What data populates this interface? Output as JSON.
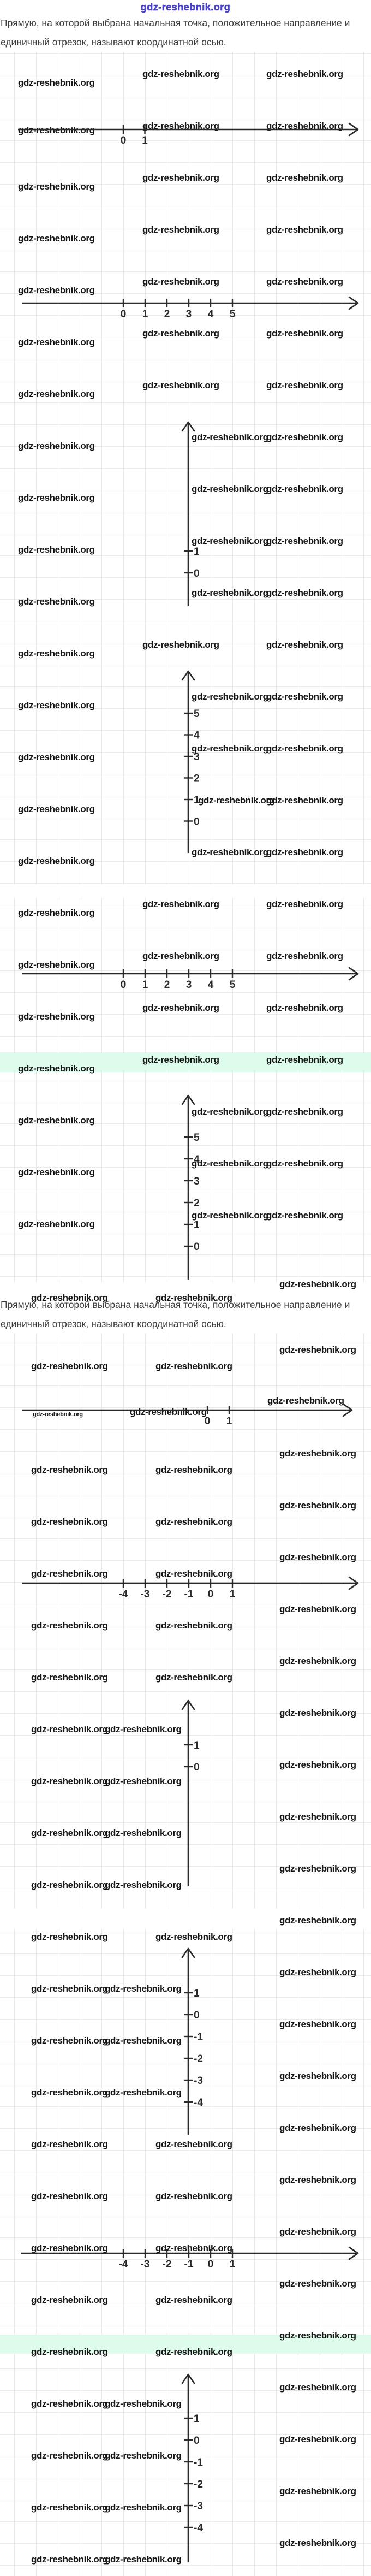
{
  "header": {
    "site_link": "gdz-reshebnik.org"
  },
  "watermark_text": "gdz-reshebnik.org",
  "paragraph": {
    "line1": "Прямую, на которой выбрана начальная точка, положительное направление и",
    "line2": "единичный отрезок, называют координатной осью."
  },
  "axes": [
    {
      "id": "axis-1",
      "orientation": "horizontal",
      "tick_labels": [
        "0",
        "1"
      ]
    },
    {
      "id": "axis-2",
      "orientation": "horizontal",
      "tick_labels": [
        "0",
        "1",
        "2",
        "3",
        "4",
        "5"
      ]
    },
    {
      "id": "axis-3",
      "orientation": "vertical",
      "tick_labels": [
        "1",
        "0"
      ]
    },
    {
      "id": "axis-4",
      "orientation": "vertical",
      "tick_labels": [
        "5",
        "4",
        "3",
        "2",
        "1",
        "0"
      ]
    },
    {
      "id": "axis-5",
      "orientation": "horizontal",
      "tick_labels": [
        "0",
        "1",
        "2",
        "3",
        "4",
        "5"
      ]
    },
    {
      "id": "axis-6",
      "orientation": "vertical",
      "tick_labels": [
        "5",
        "4",
        "3",
        "2",
        "1",
        "0"
      ]
    },
    {
      "id": "axis-7",
      "orientation": "horizontal",
      "tick_labels": [
        "0",
        "1"
      ]
    },
    {
      "id": "axis-8",
      "orientation": "horizontal",
      "tick_labels": [
        "-4",
        "-3",
        "-2",
        "-1",
        "0",
        "1"
      ]
    },
    {
      "id": "axis-9",
      "orientation": "vertical",
      "tick_labels": [
        "1",
        "0"
      ]
    },
    {
      "id": "axis-10",
      "orientation": "vertical",
      "tick_labels": [
        "1",
        "0",
        "-1",
        "-2",
        "-3",
        "-4"
      ]
    },
    {
      "id": "axis-11",
      "orientation": "horizontal",
      "tick_labels": [
        "-4",
        "-3",
        "-2",
        "-1",
        "0",
        "1"
      ]
    },
    {
      "id": "axis-12",
      "orientation": "vertical",
      "tick_labels": [
        "1",
        "0",
        "-1",
        "-2",
        "-3",
        "-4"
      ]
    }
  ],
  "colors": {
    "page_bg": "#ffffff",
    "grid_line": "#e9e9e9",
    "axis": "#2a2a2a",
    "watermark": "#161616",
    "paragraph": "#3e3e3e",
    "header_link": "#4a42c6",
    "highlight_band": "#defcec"
  }
}
